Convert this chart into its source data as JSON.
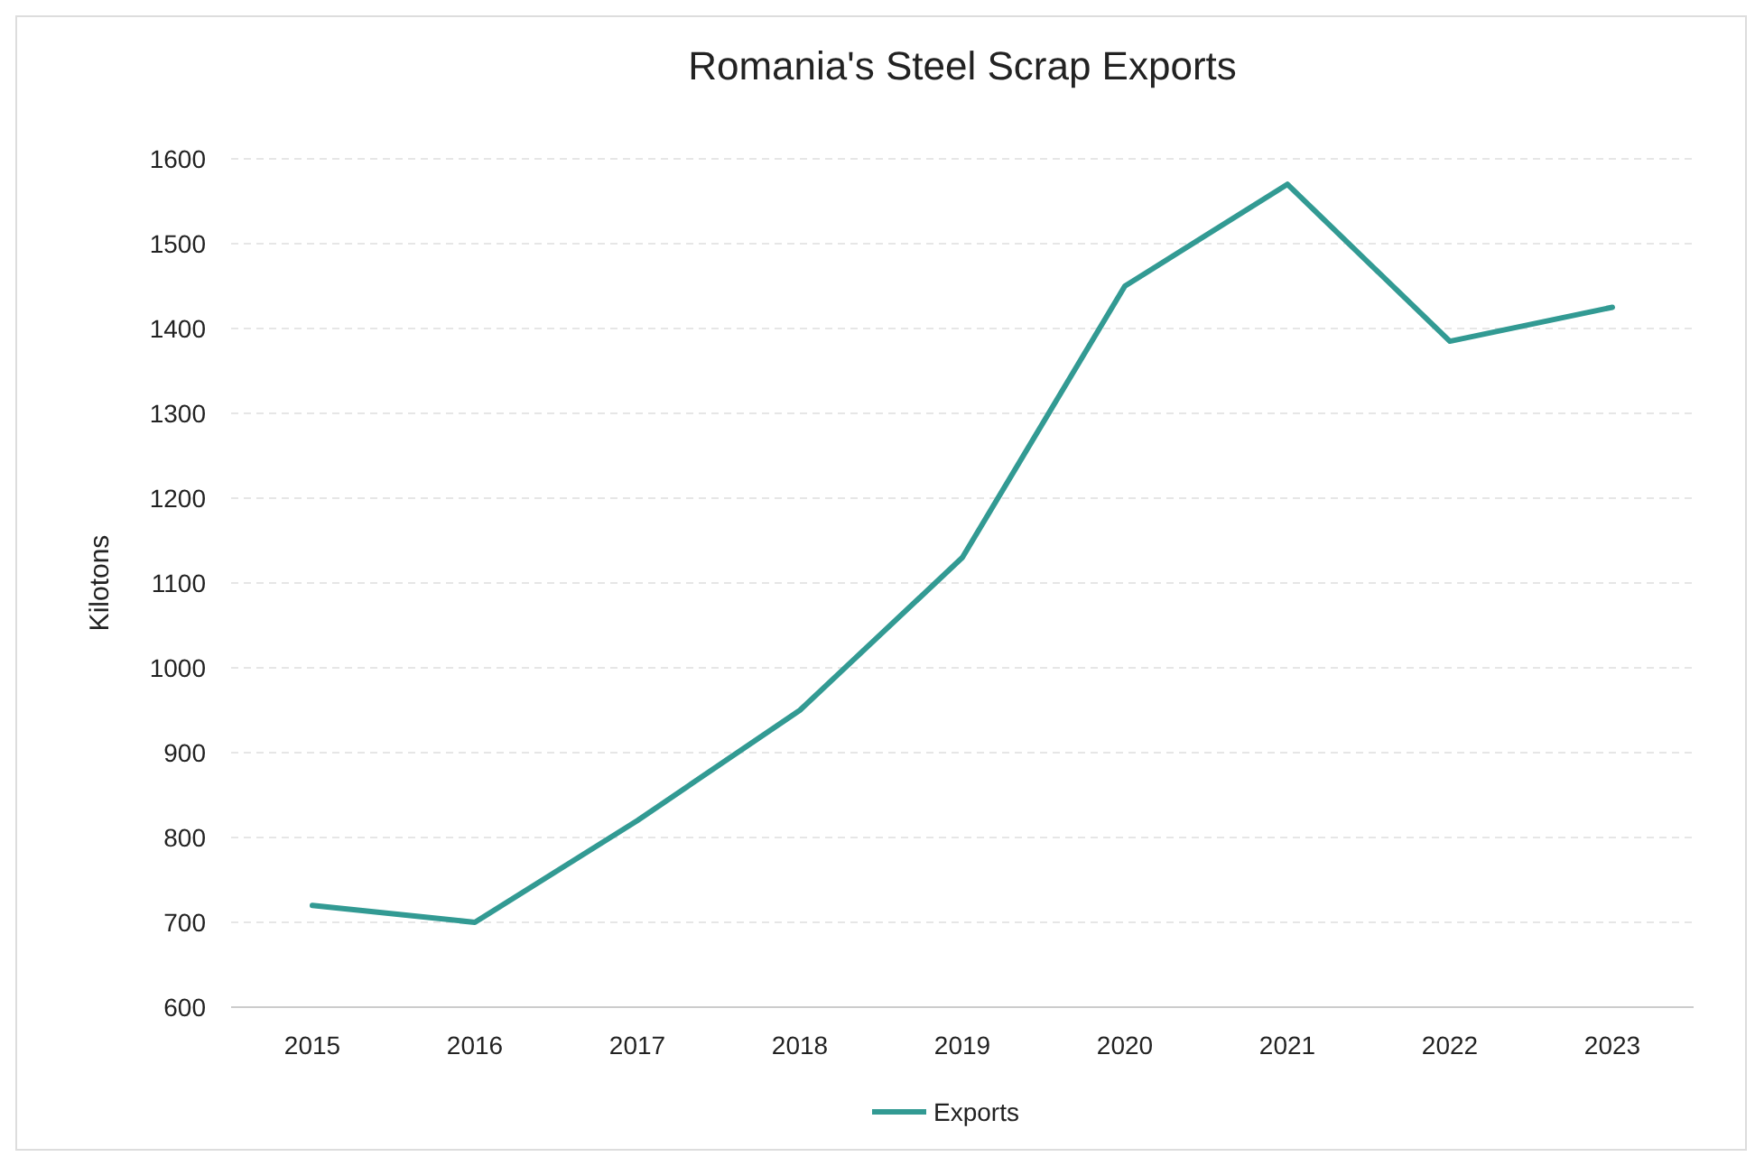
{
  "chart_data": {
    "type": "line",
    "title": "Romania's Steel Scrap Exports",
    "ylabel": "Kilotons",
    "categories": [
      "2015",
      "2016",
      "2017",
      "2018",
      "2019",
      "2020",
      "2021",
      "2022",
      "2023"
    ],
    "series": [
      {
        "name": "Exports",
        "color": "#329a93",
        "values": [
          720,
          700,
          820,
          950,
          1130,
          1450,
          1570,
          1385,
          1425
        ]
      }
    ],
    "ylim": [
      600,
      1600
    ],
    "yticks": [
      600,
      700,
      800,
      900,
      1000,
      1100,
      1200,
      1300,
      1400,
      1500,
      1600
    ],
    "grid": "y",
    "legend": "bottom",
    "marker": "none",
    "line_style": "solid"
  }
}
